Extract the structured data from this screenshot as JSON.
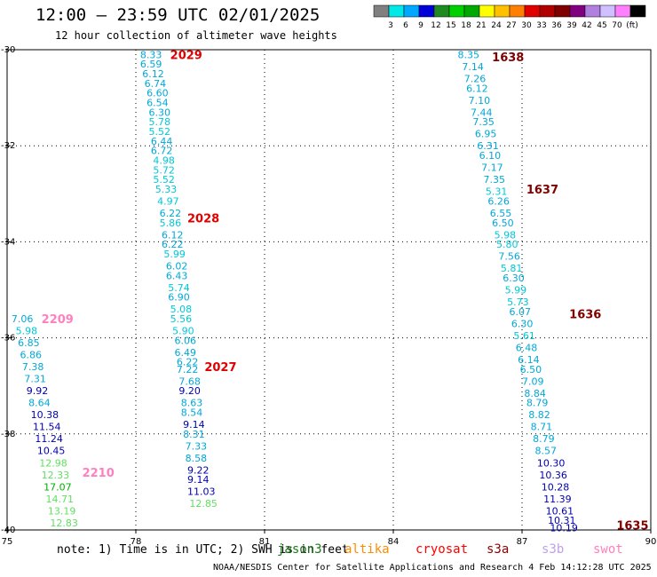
{
  "header": {
    "title": "12:00 – 23:59 UTC 02/01/2025",
    "subtitle": "12 hour collection of altimeter wave heights"
  },
  "colorbar": {
    "colors": [
      "#808080",
      "#00e8e8",
      "#00a8ff",
      "#0000d8",
      "#1f8a1f",
      "#00cf00",
      "#00a800",
      "#ffff00",
      "#ffc000",
      "#ff7f00",
      "#e00000",
      "#b00000",
      "#800000",
      "#800080",
      "#b080e0",
      "#d0c0ff",
      "#ff80ff",
      "#000000"
    ],
    "labels": [
      "3",
      "6",
      "9",
      "12",
      "15",
      "18",
      "21",
      "24",
      "27",
      "30",
      "33",
      "36",
      "39",
      "42",
      "45",
      "70"
    ],
    "unit": "(ft)"
  },
  "footer": {
    "note": "note: 1) Time is in UTC; 2) SWH is in feet",
    "credit": "NOAA/NESDIS Center for Satellite Applications and Research  4 Feb 14:12:28 UTC 2025",
    "satellites": [
      {
        "name": "jason3",
        "color": "#1a7a1a"
      },
      {
        "name": "altika",
        "color": "#ff8c00"
      },
      {
        "name": "cryosat",
        "color": "#ff0000"
      },
      {
        "name": "s3a",
        "color": "#8b0000"
      },
      {
        "name": "s3b",
        "color": "#c0a0e8"
      },
      {
        "name": "swot",
        "color": "#ff80c0"
      }
    ]
  },
  "chart_data": {
    "type": "scatter",
    "xlim": [
      75,
      90
    ],
    "ylim": [
      -40,
      -30
    ],
    "xticks": [
      75,
      78,
      81,
      84,
      87,
      90
    ],
    "yticks": [
      -30,
      -32,
      -34,
      -36,
      -38,
      -40
    ],
    "grid": true,
    "time_labels": [
      {
        "text": "2029",
        "lon": 78.8,
        "lat": -30.1,
        "color": "#e00000"
      },
      {
        "text": "2028",
        "lon": 79.2,
        "lat": -33.5,
        "color": "#e00000"
      },
      {
        "text": "2027",
        "lon": 79.6,
        "lat": -36.6,
        "color": "#e00000"
      },
      {
        "text": "1638",
        "lon": 86.3,
        "lat": -30.15,
        "color": "#800000"
      },
      {
        "text": "1637",
        "lon": 87.1,
        "lat": -32.9,
        "color": "#800000"
      },
      {
        "text": "1636",
        "lon": 88.1,
        "lat": -35.5,
        "color": "#800000"
      },
      {
        "text": "1635",
        "lon": 89.2,
        "lat": -39.9,
        "color": "#800000"
      },
      {
        "text": "2209",
        "lon": 75.8,
        "lat": -35.6,
        "color": "#ff80c0"
      },
      {
        "text": "2210",
        "lon": 76.75,
        "lat": -38.8,
        "color": "#ff80c0"
      }
    ],
    "series": [
      {
        "name": "2029",
        "points": [
          {
            "lon": 78.1,
            "lat": -30.1,
            "swh": "8.33"
          },
          {
            "lon": 78.1,
            "lat": -30.3,
            "swh": "6.59"
          },
          {
            "lon": 78.15,
            "lat": -30.5,
            "swh": "6.12"
          },
          {
            "lon": 78.2,
            "lat": -30.7,
            "swh": "6.74"
          },
          {
            "lon": 78.25,
            "lat": -30.9,
            "swh": "6.60"
          },
          {
            "lon": 78.25,
            "lat": -31.1,
            "swh": "6.54"
          },
          {
            "lon": 78.3,
            "lat": -31.3,
            "swh": "6.30"
          },
          {
            "lon": 78.3,
            "lat": -31.5,
            "swh": "5.78"
          },
          {
            "lon": 78.3,
            "lat": -31.7,
            "swh": "5.52"
          },
          {
            "lon": 78.35,
            "lat": -31.9,
            "swh": "6.44"
          },
          {
            "lon": 78.35,
            "lat": -32.1,
            "swh": "6.72"
          },
          {
            "lon": 78.4,
            "lat": -32.3,
            "swh": "4.98"
          },
          {
            "lon": 78.4,
            "lat": -32.5,
            "swh": "5.72"
          },
          {
            "lon": 78.4,
            "lat": -32.7,
            "swh": "5.52"
          },
          {
            "lon": 78.45,
            "lat": -32.9,
            "swh": "5.33"
          }
        ]
      },
      {
        "name": "2028",
        "points": [
          {
            "lon": 78.5,
            "lat": -33.15,
            "swh": "4.97"
          },
          {
            "lon": 78.55,
            "lat": -33.4,
            "swh": "6.22"
          },
          {
            "lon": 78.55,
            "lat": -33.6,
            "swh": "5.86"
          },
          {
            "lon": 78.6,
            "lat": -33.85,
            "swh": "6.12"
          },
          {
            "lon": 78.6,
            "lat": -34.05,
            "swh": "6.22"
          },
          {
            "lon": 78.65,
            "lat": -34.25,
            "swh": "5.99"
          },
          {
            "lon": 78.7,
            "lat": -34.5,
            "swh": "6.02"
          },
          {
            "lon": 78.7,
            "lat": -34.7,
            "swh": "6.43"
          },
          {
            "lon": 78.75,
            "lat": -34.95,
            "swh": "5.74"
          },
          {
            "lon": 78.75,
            "lat": -35.15,
            "swh": "6.90"
          },
          {
            "lon": 78.8,
            "lat": -35.4,
            "swh": "5.08"
          },
          {
            "lon": 78.8,
            "lat": -35.6,
            "swh": "5.56"
          },
          {
            "lon": 78.85,
            "lat": -35.85,
            "swh": "5.90"
          },
          {
            "lon": 78.9,
            "lat": -36.05,
            "swh": "6.06"
          },
          {
            "lon": 78.9,
            "lat": -36.3,
            "swh": "6.49"
          },
          {
            "lon": 78.95,
            "lat": -36.5,
            "swh": "6.22"
          }
        ]
      },
      {
        "name": "2027",
        "points": [
          {
            "lon": 78.95,
            "lat": -36.65,
            "swh": "7.22"
          },
          {
            "lon": 79.0,
            "lat": -36.9,
            "swh": "7.68"
          },
          {
            "lon": 79.0,
            "lat": -37.1,
            "swh": "9.20"
          },
          {
            "lon": 79.05,
            "lat": -37.35,
            "swh": "8.63"
          },
          {
            "lon": 79.05,
            "lat": -37.55,
            "swh": "8.54"
          },
          {
            "lon": 79.1,
            "lat": -37.8,
            "swh": "9.14"
          },
          {
            "lon": 79.1,
            "lat": -38.0,
            "swh": "8.31"
          },
          {
            "lon": 79.15,
            "lat": -38.25,
            "swh": "7.33"
          },
          {
            "lon": 79.15,
            "lat": -38.5,
            "swh": "8.58"
          },
          {
            "lon": 79.2,
            "lat": -38.75,
            "swh": "9.22"
          },
          {
            "lon": 79.2,
            "lat": -38.95,
            "swh": "9.14"
          },
          {
            "lon": 79.2,
            "lat": -39.2,
            "swh": "11.03"
          },
          {
            "lon": 79.25,
            "lat": -39.45,
            "swh": "12.85"
          }
        ]
      },
      {
        "name": "1638",
        "points": [
          {
            "lon": 85.5,
            "lat": -30.1,
            "swh": "8.35"
          },
          {
            "lon": 85.6,
            "lat": -30.35,
            "swh": "7.14"
          },
          {
            "lon": 85.65,
            "lat": -30.6,
            "swh": "7.26"
          },
          {
            "lon": 85.7,
            "lat": -30.8,
            "swh": "6.12"
          },
          {
            "lon": 85.75,
            "lat": -31.05,
            "swh": "7.10"
          },
          {
            "lon": 85.8,
            "lat": -31.3,
            "swh": "7.44"
          },
          {
            "lon": 85.85,
            "lat": -31.5,
            "swh": "7.35"
          },
          {
            "lon": 85.9,
            "lat": -31.75,
            "swh": "6.95"
          },
          {
            "lon": 85.95,
            "lat": -32.0,
            "swh": "6.31"
          },
          {
            "lon": 86.0,
            "lat": -32.2,
            "swh": "6.10"
          },
          {
            "lon": 86.05,
            "lat": -32.45,
            "swh": "7.17"
          },
          {
            "lon": 86.1,
            "lat": -32.7,
            "swh": "7.35"
          }
        ]
      },
      {
        "name": "1637",
        "points": [
          {
            "lon": 86.15,
            "lat": -32.95,
            "swh": "5.31"
          },
          {
            "lon": 86.2,
            "lat": -33.15,
            "swh": "6.26"
          },
          {
            "lon": 86.25,
            "lat": -33.4,
            "swh": "6.55"
          },
          {
            "lon": 86.3,
            "lat": -33.6,
            "swh": "6.50"
          },
          {
            "lon": 86.35,
            "lat": -33.85,
            "swh": "5.98"
          },
          {
            "lon": 86.4,
            "lat": -34.05,
            "swh": "5.80"
          },
          {
            "lon": 86.45,
            "lat": -34.3,
            "swh": "7.56"
          },
          {
            "lon": 86.5,
            "lat": -34.55,
            "swh": "5.81"
          },
          {
            "lon": 86.55,
            "lat": -34.75,
            "swh": "6.30"
          },
          {
            "lon": 86.6,
            "lat": -35.0,
            "swh": "5.99"
          },
          {
            "lon": 86.65,
            "lat": -35.25,
            "swh": "5.73"
          },
          {
            "lon": 86.7,
            "lat": -35.45,
            "swh": "6.07"
          },
          {
            "lon": 86.75,
            "lat": -35.7,
            "swh": "6.30"
          },
          {
            "lon": 86.8,
            "lat": -35.95,
            "swh": "5.61"
          },
          {
            "lon": 86.85,
            "lat": -36.2,
            "swh": "6.48"
          }
        ]
      },
      {
        "name": "1636",
        "points": [
          {
            "lon": 86.9,
            "lat": -36.45,
            "swh": "6.14"
          },
          {
            "lon": 86.95,
            "lat": -36.65,
            "swh": "6.50"
          },
          {
            "lon": 87.0,
            "lat": -36.9,
            "swh": "7.09"
          },
          {
            "lon": 87.05,
            "lat": -37.15,
            "swh": "8.84"
          },
          {
            "lon": 87.1,
            "lat": -37.35,
            "swh": "8.79"
          },
          {
            "lon": 87.15,
            "lat": -37.6,
            "swh": "8.82"
          },
          {
            "lon": 87.2,
            "lat": -37.85,
            "swh": "8.71"
          },
          {
            "lon": 87.25,
            "lat": -38.1,
            "swh": "8.79"
          },
          {
            "lon": 87.3,
            "lat": -38.35,
            "swh": "8.57"
          },
          {
            "lon": 87.35,
            "lat": -38.6,
            "swh": "10.30"
          },
          {
            "lon": 87.4,
            "lat": -38.85,
            "swh": "10.36"
          },
          {
            "lon": 87.45,
            "lat": -39.1,
            "swh": "10.28"
          },
          {
            "lon": 87.5,
            "lat": -39.35,
            "swh": "11.39"
          },
          {
            "lon": 87.55,
            "lat": -39.6,
            "swh": "10.61"
          },
          {
            "lon": 87.6,
            "lat": -39.8,
            "swh": "10.31"
          },
          {
            "lon": 87.65,
            "lat": -39.95,
            "swh": "10.19"
          }
        ]
      },
      {
        "name": "2209",
        "points": [
          {
            "lon": 75.1,
            "lat": -35.6,
            "swh": "7.06"
          },
          {
            "lon": 75.2,
            "lat": -35.85,
            "swh": "5.98"
          },
          {
            "lon": 75.25,
            "lat": -36.1,
            "swh": "6.85"
          },
          {
            "lon": 75.3,
            "lat": -36.35,
            "swh": "6.86"
          },
          {
            "lon": 75.35,
            "lat": -36.6,
            "swh": "7.38"
          },
          {
            "lon": 75.4,
            "lat": -36.85,
            "swh": "7.31"
          },
          {
            "lon": 75.45,
            "lat": -37.1,
            "swh": "9.92"
          },
          {
            "lon": 75.5,
            "lat": -37.35,
            "swh": "8.64"
          },
          {
            "lon": 75.55,
            "lat": -37.6,
            "swh": "10.38"
          },
          {
            "lon": 75.6,
            "lat": -37.85,
            "swh": "11.54"
          },
          {
            "lon": 75.65,
            "lat": -38.1,
            "swh": "11.24"
          },
          {
            "lon": 75.7,
            "lat": -38.35,
            "swh": "10.45"
          }
        ]
      },
      {
        "name": "2210",
        "points": [
          {
            "lon": 75.75,
            "lat": -38.6,
            "swh": "12.98"
          },
          {
            "lon": 75.8,
            "lat": -38.85,
            "swh": "12.33"
          },
          {
            "lon": 75.85,
            "lat": -39.1,
            "swh": "17.07"
          },
          {
            "lon": 75.9,
            "lat": -39.35,
            "swh": "14.71"
          },
          {
            "lon": 75.95,
            "lat": -39.6,
            "swh": "13.19"
          },
          {
            "lon": 76.0,
            "lat": -39.85,
            "swh": "12.83"
          }
        ]
      }
    ]
  }
}
